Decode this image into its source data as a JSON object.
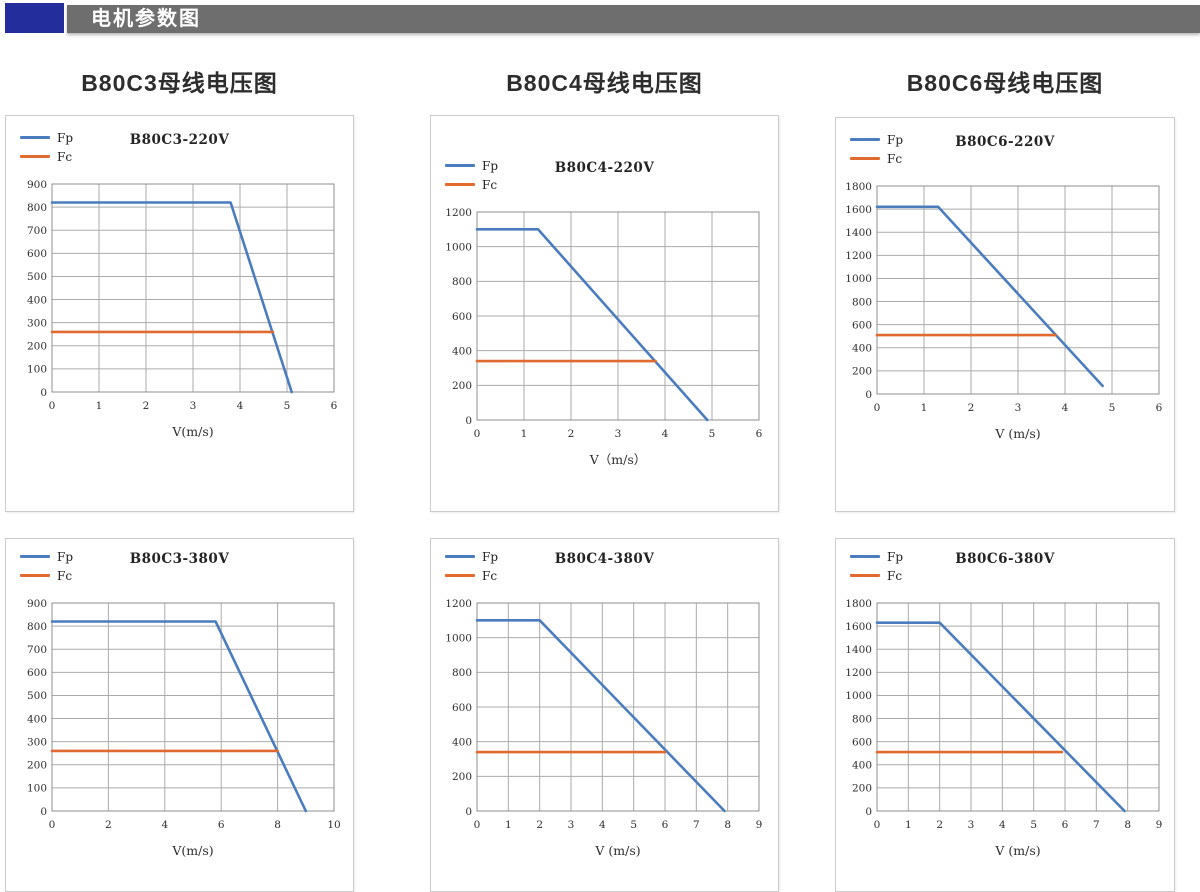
{
  "header": {
    "title": "电机参数图"
  },
  "sections": [
    {
      "title": "B80C3母线电压图"
    },
    {
      "title": "B80C4母线电压图"
    },
    {
      "title": "B80C6母线电压图"
    }
  ],
  "colors": {
    "fp": "#4a7cbe",
    "fc": "#e06a30",
    "header_block": "#232d9b",
    "header_bar": "#6e6e6e",
    "grid": "#ababab"
  },
  "chart_data": [
    {
      "type": "line",
      "title": "B80C3-220V",
      "xlabel": "V(m/s)",
      "xlim": [
        0,
        6
      ],
      "xtick_step": 1,
      "ylim": [
        0,
        900
      ],
      "ytick_step": 100,
      "grid": true,
      "legend_position": "top-left",
      "series": [
        {
          "name": "Fp",
          "color_key": "fp",
          "points": [
            [
              0,
              820
            ],
            [
              3.8,
              820
            ],
            [
              5.1,
              0
            ]
          ]
        },
        {
          "name": "Fc",
          "color_key": "fc",
          "points": [
            [
              0,
              260
            ],
            [
              4.7,
              260
            ]
          ]
        }
      ]
    },
    {
      "type": "line",
      "title": "B80C4-220V",
      "xlabel": "V（m/s）",
      "xlim": [
        0,
        6
      ],
      "xtick_step": 1,
      "ylim": [
        0,
        1200
      ],
      "ytick_step": 200,
      "grid": true,
      "legend_position": "top-left",
      "series": [
        {
          "name": "Fp",
          "color_key": "fp",
          "points": [
            [
              0,
              1100
            ],
            [
              1.3,
              1100
            ],
            [
              4.9,
              0
            ]
          ]
        },
        {
          "name": "Fc",
          "color_key": "fc",
          "points": [
            [
              0,
              340
            ],
            [
              3.8,
              340
            ]
          ]
        }
      ]
    },
    {
      "type": "line",
      "title": "B80C6-220V",
      "xlabel": "V (m/s)",
      "xlim": [
        0,
        6
      ],
      "xtick_step": 1,
      "ylim": [
        0,
        1800
      ],
      "ytick_step": 200,
      "grid": true,
      "legend_position": "top-left",
      "series": [
        {
          "name": "Fp",
          "color_key": "fp",
          "points": [
            [
              0,
              1620
            ],
            [
              1.3,
              1620
            ],
            [
              4.8,
              70
            ]
          ]
        },
        {
          "name": "Fc",
          "color_key": "fc",
          "points": [
            [
              0,
              510
            ],
            [
              3.8,
              510
            ]
          ]
        }
      ]
    },
    {
      "type": "line",
      "title": "B80C3-380V",
      "xlabel": "V(m/s)",
      "xlim": [
        0,
        10
      ],
      "xtick_step": 2,
      "ylim": [
        0,
        900
      ],
      "ytick_step": 100,
      "grid": true,
      "legend_position": "top-left",
      "series": [
        {
          "name": "Fp",
          "color_key": "fp",
          "points": [
            [
              0,
              820
            ],
            [
              5.8,
              820
            ],
            [
              9,
              0
            ]
          ]
        },
        {
          "name": "Fc",
          "color_key": "fc",
          "points": [
            [
              0,
              260
            ],
            [
              8,
              260
            ]
          ]
        }
      ]
    },
    {
      "type": "line",
      "title": "B80C4-380V",
      "xlabel": "V (m/s)",
      "xlim": [
        0,
        9
      ],
      "xtick_step": 1,
      "ylim": [
        0,
        1200
      ],
      "ytick_step": 200,
      "grid": true,
      "legend_position": "top-left",
      "series": [
        {
          "name": "Fp",
          "color_key": "fp",
          "points": [
            [
              0,
              1100
            ],
            [
              2,
              1100
            ],
            [
              7.9,
              0
            ]
          ]
        },
        {
          "name": "Fc",
          "color_key": "fc",
          "points": [
            [
              0,
              340
            ],
            [
              6,
              340
            ]
          ]
        }
      ]
    },
    {
      "type": "line",
      "title": "B80C6-380V",
      "xlabel": "V (m/s)",
      "xlim": [
        0,
        9
      ],
      "xtick_step": 1,
      "ylim": [
        0,
        1800
      ],
      "ytick_step": 200,
      "grid": true,
      "legend_position": "top-left",
      "series": [
        {
          "name": "Fp",
          "color_key": "fp",
          "points": [
            [
              0,
              1630
            ],
            [
              2,
              1630
            ],
            [
              7.9,
              0
            ]
          ]
        },
        {
          "name": "Fc",
          "color_key": "fc",
          "points": [
            [
              0,
              510
            ],
            [
              5.9,
              510
            ]
          ]
        }
      ]
    }
  ]
}
